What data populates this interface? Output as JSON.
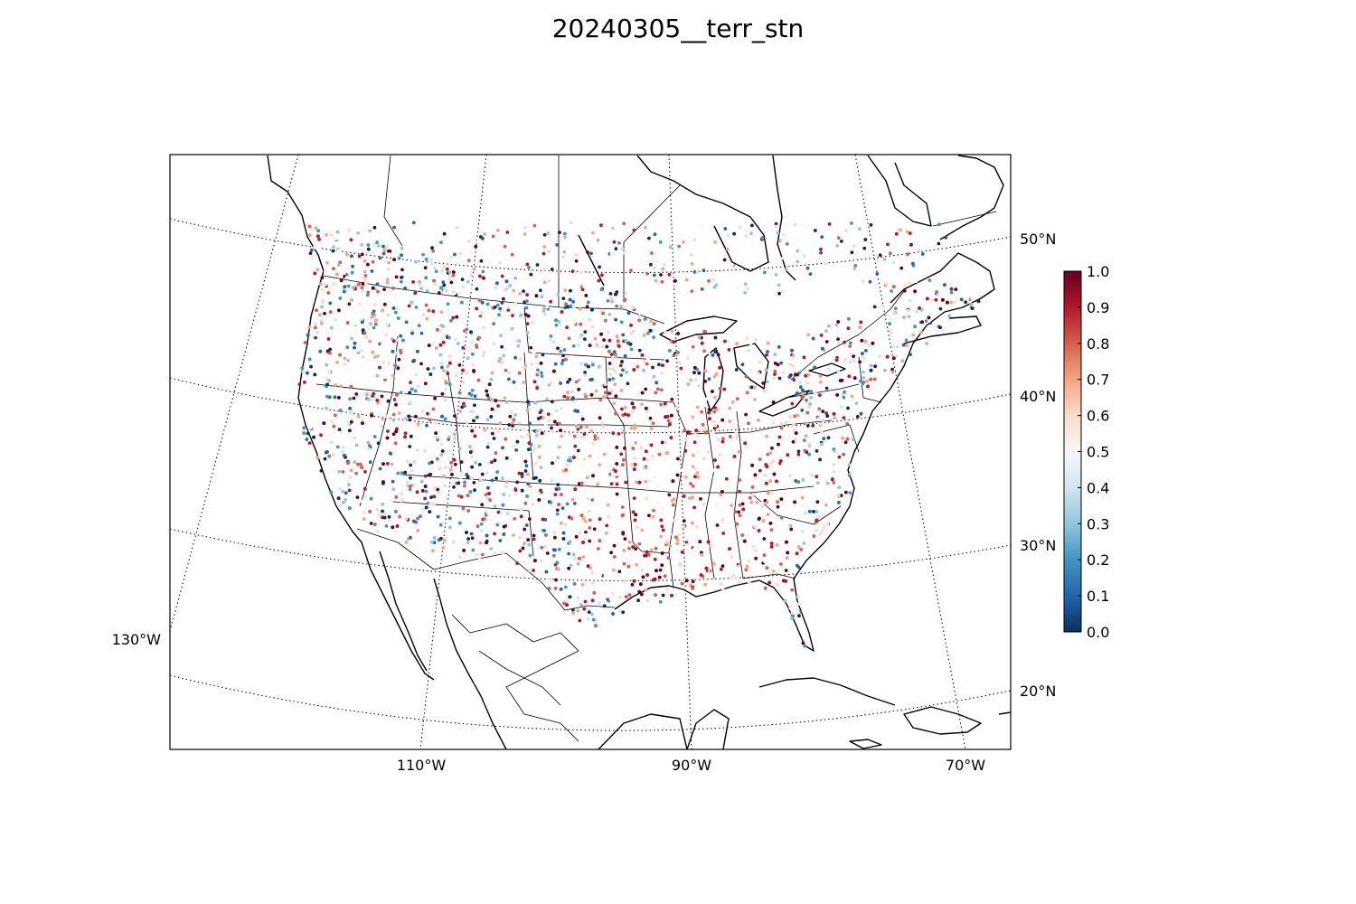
{
  "title": "20240305__terr_stn",
  "map": {
    "lon_labels": [
      "110°W",
      "90°W",
      "70°W"
    ],
    "lon_label_left": "130°W",
    "lat_labels": [
      "50°N",
      "40°N",
      "30°N",
      "20°N"
    ],
    "graticule": "dotted"
  },
  "colorbar": {
    "colormap": "RdBu_r",
    "ticks": [
      "1.0",
      "0.9",
      "0.8",
      "0.7",
      "0.6",
      "0.5",
      "0.4",
      "0.3",
      "0.2",
      "0.1",
      "0.0"
    ],
    "range": [
      0.0,
      1.0
    ],
    "colors": [
      "#053061",
      "#2166ac",
      "#4393c3",
      "#92c5de",
      "#d1e5f0",
      "#f7f7f7",
      "#fddbc7",
      "#f4a582",
      "#d6604d",
      "#b2182b",
      "#67001f"
    ]
  }
}
